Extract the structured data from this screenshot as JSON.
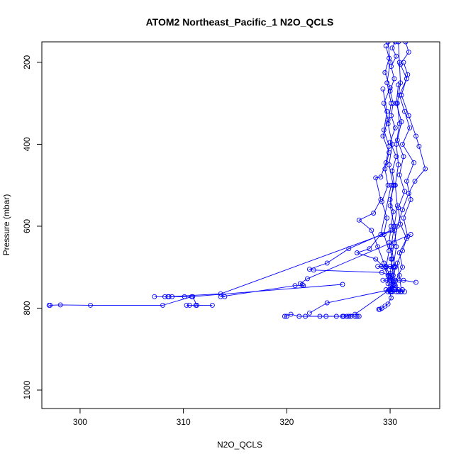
{
  "chart_data": {
    "type": "scatter",
    "title": "ATOM2 Northeast_Pacific_1 N2O_QCLS",
    "xlabel": "N2O_QCLS",
    "ylabel": "Pressure (mbar)",
    "xlim": [
      296.3,
      334.8
    ],
    "ylim": [
      1045,
      150
    ],
    "y_reversed": true,
    "xticks": [
      300,
      310,
      320,
      330
    ],
    "yticks": [
      200,
      400,
      600,
      800,
      1000
    ],
    "grid": false,
    "point_color": "#0000ff",
    "series": [
      {
        "values": [
          [
            330.5,
            150
          ],
          [
            330.2,
            165
          ],
          [
            330.6,
            185
          ],
          [
            330.1,
            210
          ],
          [
            330.4,
            240
          ],
          [
            330.0,
            270
          ],
          [
            330.3,
            300
          ],
          [
            330.1,
            330
          ],
          [
            330.5,
            360
          ],
          [
            330.0,
            395
          ],
          [
            330.6,
            430
          ],
          [
            330.2,
            465
          ],
          [
            330.4,
            500
          ],
          [
            330.0,
            535
          ],
          [
            330.3,
            565
          ],
          [
            330.1,
            600
          ],
          [
            329.9,
            640
          ],
          [
            330.2,
            680
          ],
          [
            330.0,
            715
          ],
          [
            330.3,
            745
          ],
          [
            330.1,
            760
          ]
        ]
      },
      {
        "values": [
          [
            331.5,
            150
          ],
          [
            331.8,
            175
          ],
          [
            331.0,
            205
          ],
          [
            331.6,
            240
          ],
          [
            330.9,
            280
          ],
          [
            331.4,
            320
          ],
          [
            331.9,
            360
          ],
          [
            331.2,
            400
          ],
          [
            332.3,
            445
          ],
          [
            331.6,
            490
          ],
          [
            332.0,
            535
          ],
          [
            331.3,
            580
          ],
          [
            331.7,
            625
          ],
          [
            330.9,
            665
          ],
          [
            331.2,
            700
          ],
          [
            330.5,
            735
          ],
          [
            330.8,
            760
          ]
        ]
      },
      {
        "values": [
          [
            329.6,
            160
          ],
          [
            329.9,
            190
          ],
          [
            329.5,
            225
          ],
          [
            330.0,
            262
          ],
          [
            329.4,
            300
          ],
          [
            329.8,
            340
          ],
          [
            329.3,
            380
          ],
          [
            329.9,
            420
          ],
          [
            329.5,
            460
          ],
          [
            329.8,
            500
          ],
          [
            329.2,
            540
          ],
          [
            329.7,
            580
          ],
          [
            329.4,
            620
          ],
          [
            329.9,
            660
          ],
          [
            329.6,
            700
          ],
          [
            329.8,
            740
          ],
          [
            330.0,
            760
          ]
        ]
      },
      {
        "values": [
          [
            331.3,
            200
          ],
          [
            331.7,
            230
          ],
          [
            331.1,
            280
          ],
          [
            331.8,
            330
          ],
          [
            332.5,
            380
          ],
          [
            332.8,
            405
          ],
          [
            333.4,
            460
          ],
          [
            332.4,
            490
          ],
          [
            331.8,
            520
          ],
          [
            331.2,
            560
          ],
          [
            330.7,
            600
          ],
          [
            330.4,
            640
          ],
          [
            330.1,
            680
          ],
          [
            330.3,
            720
          ],
          [
            330.0,
            760
          ]
        ]
      },
      {
        "values": [
          [
            330.8,
            255
          ],
          [
            330.6,
            300
          ],
          [
            331.1,
            345
          ],
          [
            330.7,
            390
          ],
          [
            331.3,
            430
          ],
          [
            330.9,
            475
          ],
          [
            331.4,
            515
          ],
          [
            330.8,
            555
          ],
          [
            331.0,
            595
          ],
          [
            331.6,
            630
          ],
          [
            331.2,
            660
          ],
          [
            330.7,
            690
          ],
          [
            330.9,
            720
          ],
          [
            331.1,
            760
          ]
        ]
      },
      {
        "values": [
          [
            329.3,
            265
          ],
          [
            329.7,
            320
          ],
          [
            329.4,
            365
          ],
          [
            329.9,
            405
          ],
          [
            329.6,
            445
          ],
          [
            329.1,
            480
          ],
          [
            328.6,
            482
          ],
          [
            329.1,
            535
          ],
          [
            328.4,
            568
          ],
          [
            327.0,
            585
          ],
          [
            328.2,
            610
          ],
          [
            328.8,
            650
          ],
          [
            329.4,
            690
          ],
          [
            330.0,
            720
          ],
          [
            330.2,
            760
          ]
        ]
      },
      {
        "values": [
          [
            330.1,
            500
          ],
          [
            329.1,
            620
          ],
          [
            328.0,
            655
          ],
          [
            326.8,
            665
          ],
          [
            328.6,
            680
          ],
          [
            329.4,
            700
          ],
          [
            329.8,
            720
          ],
          [
            330.1,
            760
          ]
        ]
      },
      {
        "values": [
          [
            330.1,
            610
          ],
          [
            326.0,
            655
          ],
          [
            323.9,
            690
          ],
          [
            322.2,
            705
          ],
          [
            322.6,
            707
          ],
          [
            329.2,
            713
          ],
          [
            330.0,
            720
          ]
        ]
      },
      {
        "values": [
          [
            330.4,
            700
          ],
          [
            328.8,
            698
          ],
          [
            329.2,
            698
          ],
          [
            329.6,
            698
          ],
          [
            330.0,
            698
          ],
          [
            330.4,
            698
          ]
        ]
      },
      {
        "values": [
          [
            330.0,
            732
          ],
          [
            329.3,
            732
          ],
          [
            329.7,
            732
          ],
          [
            330.1,
            732
          ],
          [
            330.5,
            732
          ],
          [
            330.9,
            732
          ],
          [
            331.3,
            732
          ],
          [
            332.5,
            737
          ]
        ]
      },
      {
        "values": [
          [
            329.6,
            755
          ],
          [
            330.0,
            755
          ],
          [
            330.4,
            755
          ],
          [
            330.8,
            755
          ],
          [
            331.2,
            755
          ],
          [
            329.8,
            760
          ],
          [
            330.2,
            760
          ],
          [
            330.6,
            760
          ],
          [
            331.0,
            760
          ],
          [
            331.4,
            760
          ]
        ]
      },
      {
        "values": [
          [
            330.4,
            610
          ],
          [
            313.6,
            765
          ],
          [
            308.6,
            772
          ],
          [
            307.2,
            772
          ],
          [
            308.2,
            772
          ],
          [
            308.5,
            772
          ],
          [
            308.9,
            772
          ],
          [
            310.1,
            772
          ],
          [
            310.9,
            772
          ],
          [
            311.3,
            793
          ],
          [
            311.2,
            793
          ],
          [
            310.3,
            793
          ],
          [
            310.6,
            793
          ],
          [
            312.8,
            793
          ]
        ]
      },
      {
        "values": [
          [
            332.0,
            620
          ],
          [
            322.0,
            728
          ],
          [
            321.3,
            740
          ],
          [
            321.5,
            743
          ],
          [
            321.6,
            745
          ],
          [
            320.8,
            745
          ],
          [
            313.6,
            772
          ],
          [
            314.0,
            772
          ]
        ]
      },
      {
        "values": [
          [
            325.4,
            742
          ],
          [
            310.8,
            772
          ],
          [
            308.0,
            793
          ],
          [
            301.0,
            793
          ],
          [
            298.1,
            792
          ],
          [
            297.0,
            793
          ],
          [
            297.1,
            793
          ]
        ]
      },
      {
        "values": [
          [
            330.0,
            725
          ],
          [
            330.2,
            740
          ],
          [
            329.9,
            755
          ],
          [
            330.1,
            775
          ],
          [
            329.8,
            790
          ],
          [
            329.5,
            795
          ],
          [
            329.2,
            800
          ],
          [
            328.9,
            803
          ],
          [
            329.0,
            803
          ]
        ]
      },
      {
        "values": [
          [
            330.5,
            745
          ],
          [
            326.6,
            815
          ],
          [
            325.4,
            820
          ],
          [
            326.2,
            820
          ],
          [
            327.0,
            820
          ],
          [
            326.8,
            820
          ],
          [
            326.6,
            820
          ],
          [
            326.0,
            820
          ],
          [
            325.8,
            820
          ],
          [
            325.5,
            820
          ],
          [
            324.8,
            820
          ],
          [
            323.8,
            820
          ],
          [
            323.2,
            820
          ],
          [
            321.8,
            820
          ],
          [
            321.2,
            820
          ],
          [
            320.4,
            815
          ],
          [
            319.8,
            820
          ],
          [
            320.0,
            820
          ]
        ]
      },
      {
        "values": [
          [
            330.0,
            755
          ],
          [
            323.9,
            787
          ],
          [
            322.2,
            812
          ]
        ]
      },
      {
        "values": [
          [
            330.8,
            150
          ],
          [
            330.9,
            200
          ],
          [
            331.0,
            250
          ],
          [
            330.7,
            300
          ],
          [
            330.9,
            350
          ],
          [
            330.6,
            400
          ],
          [
            330.8,
            450
          ],
          [
            330.5,
            500
          ],
          [
            330.7,
            550
          ],
          [
            330.4,
            600
          ],
          [
            330.6,
            650
          ],
          [
            330.3,
            700
          ],
          [
            330.5,
            750
          ]
        ]
      },
      {
        "values": [
          [
            329.8,
            150
          ],
          [
            330.0,
            200
          ],
          [
            329.7,
            250
          ],
          [
            330.1,
            300
          ],
          [
            329.8,
            350
          ],
          [
            330.2,
            400
          ],
          [
            329.9,
            450
          ],
          [
            330.3,
            500
          ],
          [
            330.0,
            550
          ],
          [
            330.4,
            600
          ],
          [
            330.1,
            650
          ],
          [
            330.5,
            700
          ],
          [
            330.2,
            750
          ]
        ]
      }
    ]
  }
}
